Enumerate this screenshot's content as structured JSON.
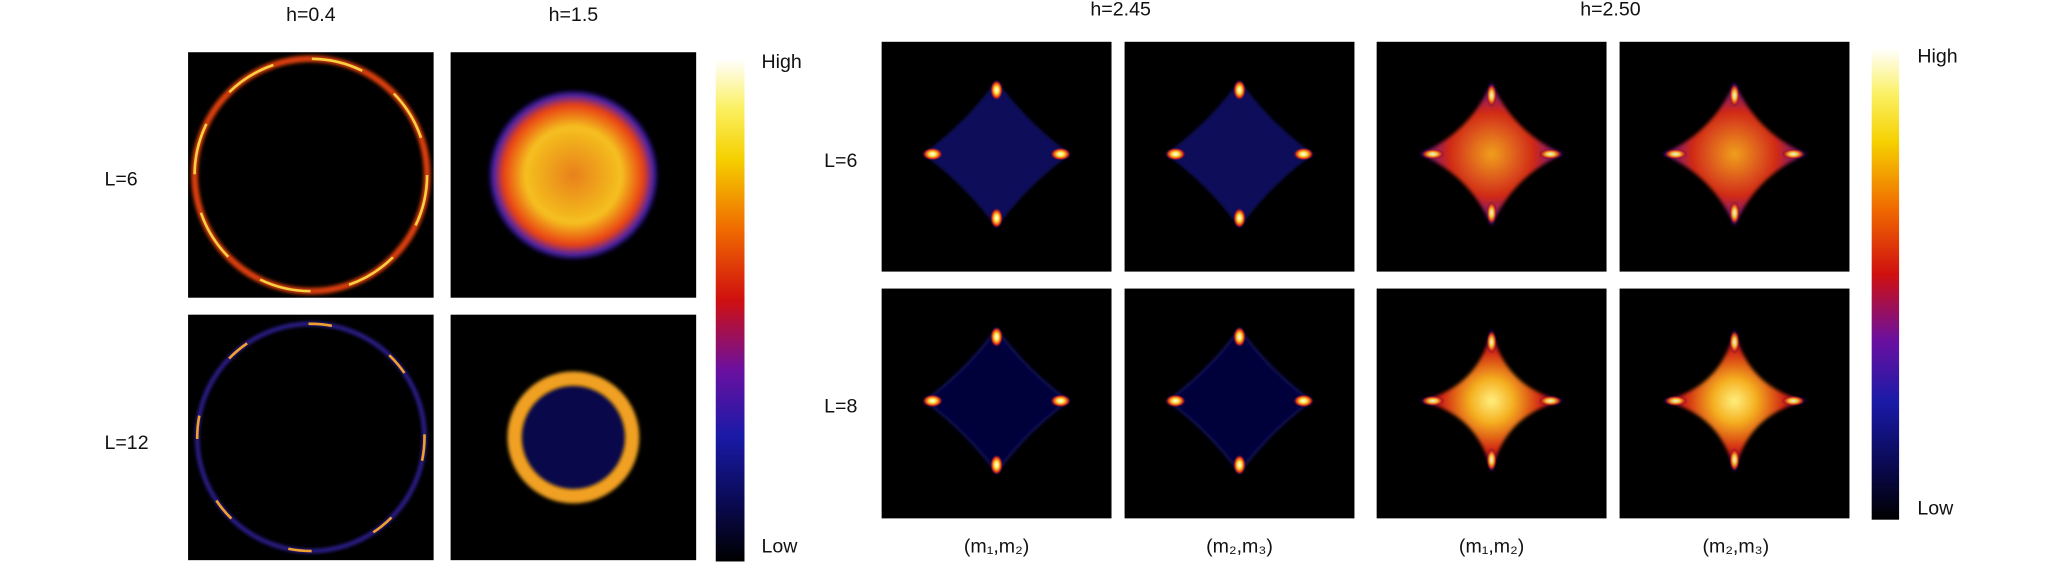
{
  "left": {
    "column_titles": [
      "h=0.4",
      "h=1.5"
    ],
    "row_labels": [
      "L=6",
      "L=12"
    ],
    "colorbar": {
      "high": "High",
      "low": "Low"
    }
  },
  "right": {
    "column_titles": [
      "h=2.45",
      "h=2.50"
    ],
    "row_labels": [
      "L=6",
      "L=8"
    ],
    "column_labels": [
      "(m₁,m₂)",
      "(m₂,m₃)",
      "(m₁,m₂)",
      "(m₂,m₃)"
    ],
    "colorbar": {
      "high": "High",
      "low": "Low"
    }
  }
}
